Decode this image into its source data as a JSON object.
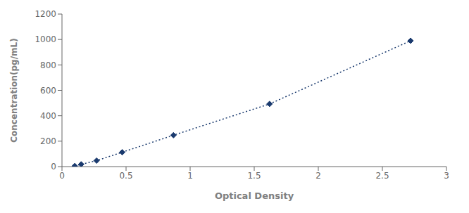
{
  "chart_data": {
    "type": "line",
    "x": [
      0.1,
      0.15,
      0.27,
      0.47,
      0.87,
      1.62,
      2.72
    ],
    "values": [
      5,
      18,
      47,
      113,
      247,
      493,
      990
    ],
    "color": "#1a3a6e",
    "marker": "diamond",
    "line_style": "dotted",
    "xlabel": "Optical Density",
    "ylabel": "Concentration(pg/mL)",
    "xlim": [
      0,
      3.0
    ],
    "ylim": [
      0,
      1200
    ],
    "xticks": [
      0,
      0.5,
      1,
      1.5,
      2,
      2.5,
      3
    ],
    "yticks": [
      0,
      200,
      400,
      600,
      800,
      1000,
      1200
    ],
    "grid": false
  }
}
